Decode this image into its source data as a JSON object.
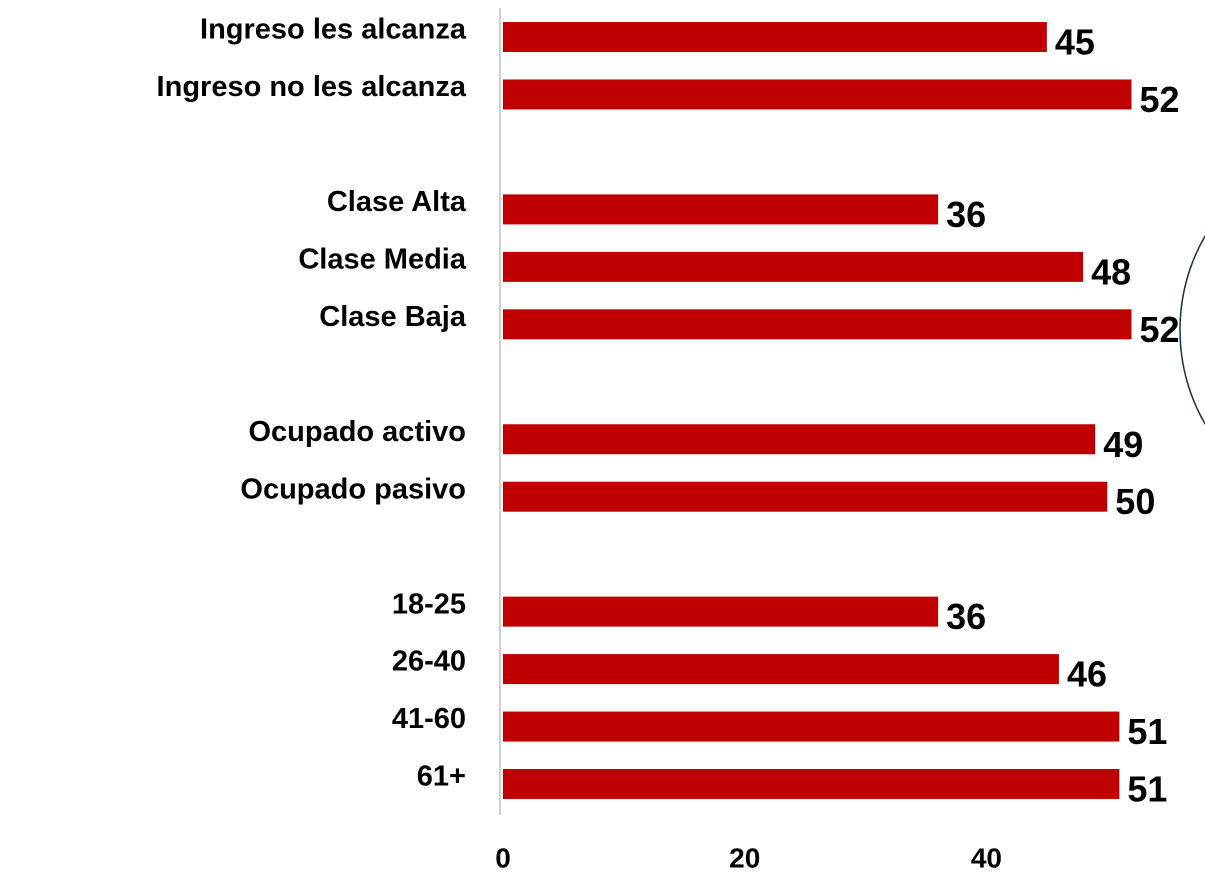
{
  "chart_data": {
    "type": "bar",
    "orientation": "horizontal",
    "categories": [
      "Ingreso les alcanza",
      "Ingreso no les alcanza",
      null,
      "Clase Alta",
      "Clase Media",
      "Clase Baja",
      null,
      "Ocupado activo",
      "Ocupado pasivo",
      null,
      "18-25",
      "26-40",
      "41-60",
      "61+"
    ],
    "values": [
      45,
      52,
      null,
      36,
      48,
      52,
      null,
      49,
      50,
      null,
      36,
      46,
      51,
      51
    ],
    "color": "#c00000",
    "xlim": [
      0,
      58
    ],
    "xticks": [
      0,
      20,
      40
    ],
    "grid": false
  }
}
